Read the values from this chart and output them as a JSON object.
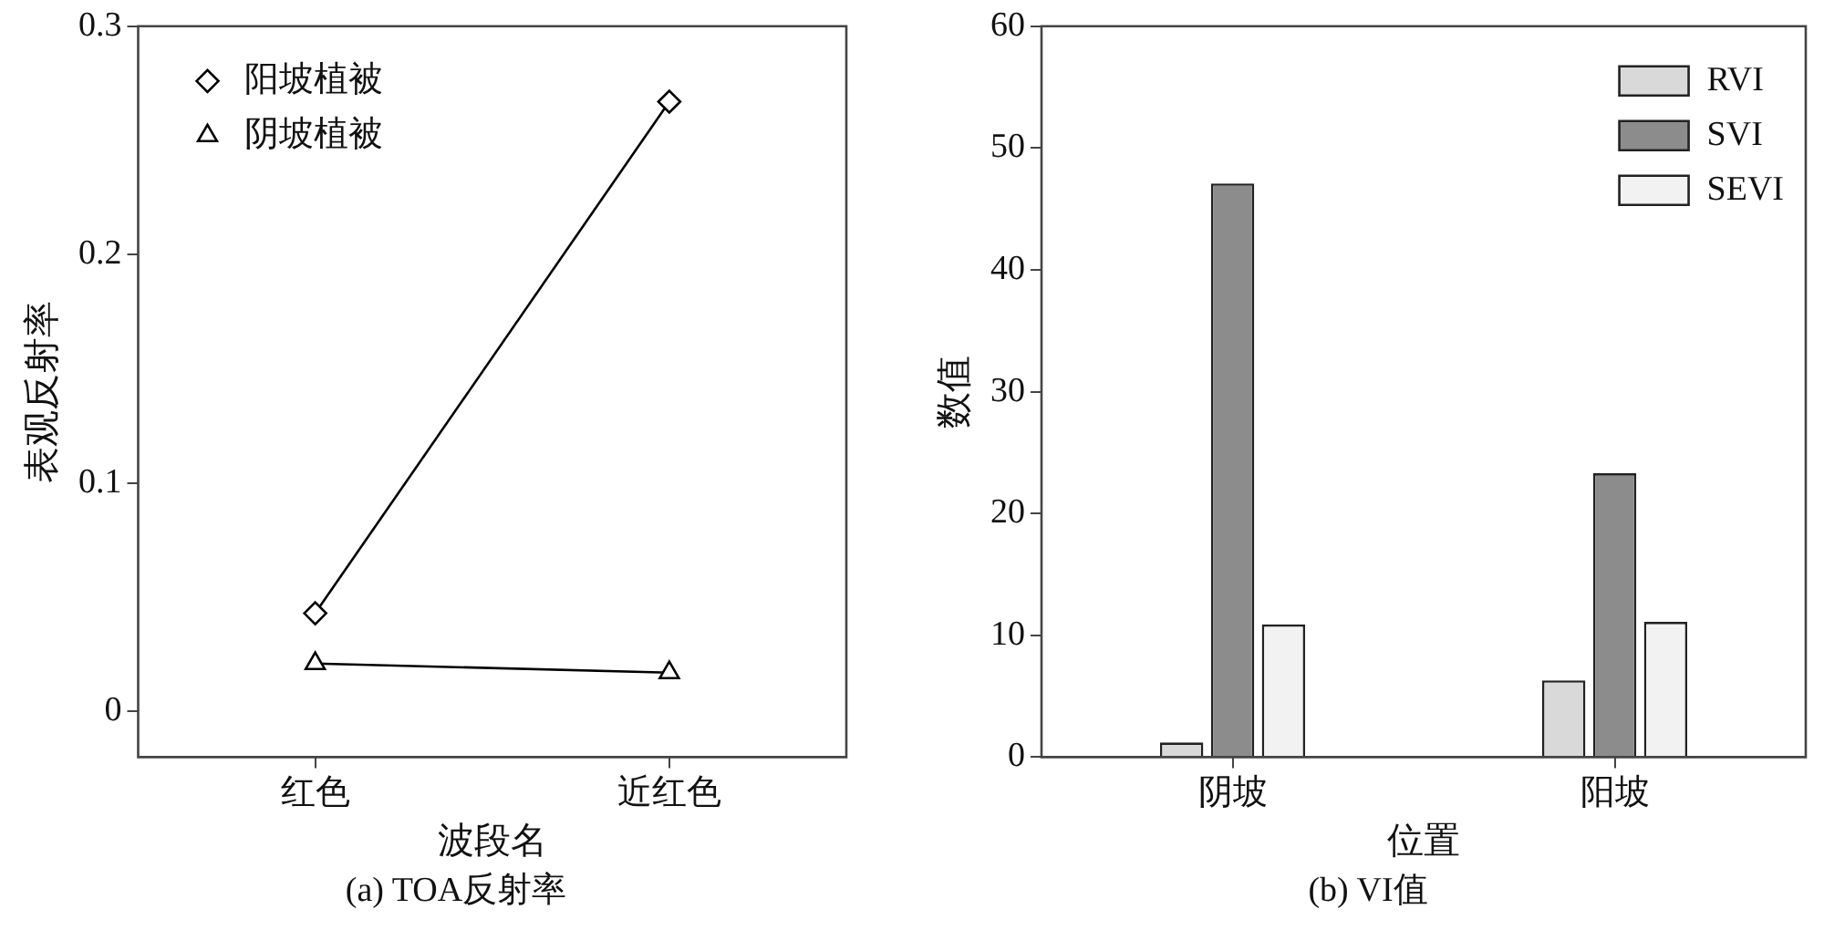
{
  "chart_data": [
    {
      "type": "line",
      "categories": [
        "红色",
        "近红色"
      ],
      "xlabel": "波段名",
      "ylabel": "表观反射率",
      "ylim": [
        -0.02,
        0.3
      ],
      "yticks": [
        0,
        0.1,
        0.2,
        0.3
      ],
      "grid": false,
      "legend": "top left",
      "line_style": "solid",
      "annotations": [
        "(a) TOA反射率"
      ],
      "series": [
        {
          "name": "阳坡植被",
          "color": "#000000",
          "marker": "diamond",
          "values": [
            0.043,
            0.267
          ]
        },
        {
          "name": "阴坡植被",
          "color": "#000000",
          "marker": "triangle",
          "values": [
            0.021,
            0.017
          ]
        }
      ]
    },
    {
      "type": "bar",
      "categories": [
        "阴坡",
        "阳坡"
      ],
      "xlabel": "位置",
      "ylabel": "数值",
      "ylim": [
        0,
        60
      ],
      "yticks": [
        0,
        10,
        20,
        30,
        40,
        50,
        60
      ],
      "grid": false,
      "legend": "top right",
      "annotations": [
        "(b) VI值"
      ],
      "series": [
        {
          "name": "RVI",
          "color": "#d9d9d9",
          "values": [
            1.2,
            6.3
          ]
        },
        {
          "name": "SVI",
          "color": "#8c8c8c",
          "values": [
            47.1,
            23.3
          ]
        },
        {
          "name": "SEVI",
          "color": "#f2f2f2",
          "values": [
            10.9,
            11.1
          ]
        }
      ]
    }
  ]
}
